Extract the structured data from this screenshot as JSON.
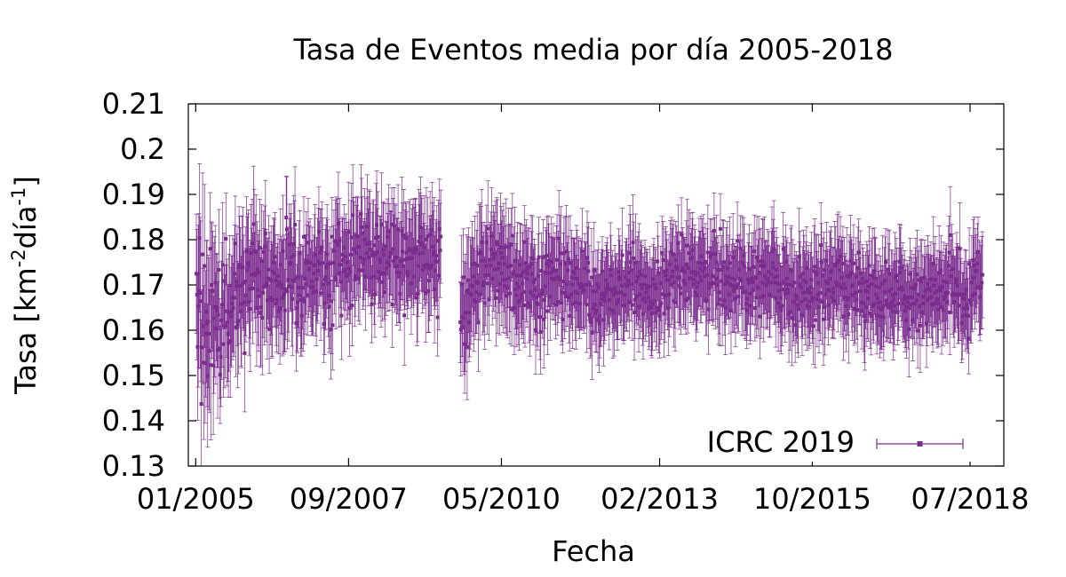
{
  "chart_data": {
    "type": "scatter",
    "title": "Tasa de Eventos media por día  2005-2018",
    "xlabel": "Fecha",
    "ylabel": {
      "base": "Tasa [km",
      "exp1": "-2",
      "mid": "día",
      "exp2": "-1",
      "end": "]"
    },
    "xlim": [
      "2004-11-15",
      "2019-02-01"
    ],
    "ylim": [
      0.13,
      0.21
    ],
    "yticks": [
      0.13,
      0.14,
      0.15,
      0.16,
      0.17,
      0.18,
      0.19,
      0.2,
      0.21
    ],
    "ytick_labels": [
      "0.13",
      "0.14",
      "0.15",
      "0.16",
      "0.17",
      "0.18",
      "0.19",
      "0.2",
      "0.21"
    ],
    "xticks": [
      "2005-01-01",
      "2007-09-01",
      "2010-05-01",
      "2013-02-01",
      "2015-10-01",
      "2018-07-01"
    ],
    "xtick_labels": [
      "01/2005",
      "09/2007",
      "05/2010",
      "02/2013",
      "10/2015",
      "07/2018"
    ],
    "legend": {
      "position": "bottom-right",
      "entries": [
        "ICRC 2019"
      ]
    },
    "grid": false,
    "colors": {
      "series": "#7b2d8e",
      "axis": "#000000"
    },
    "series": [
      {
        "name": "ICRC 2019",
        "with_error_bars": true,
        "x": [
          "2005-01-10",
          "2005-03-01",
          "2005-06-01",
          "2005-09-01",
          "2005-12-01",
          "2006-03-01",
          "2006-06-01",
          "2006-09-01",
          "2006-12-01",
          "2007-03-01",
          "2007-06-01",
          "2007-09-01",
          "2007-12-01",
          "2008-03-01",
          "2008-06-01",
          "2008-09-01",
          "2008-12-01",
          "2009-03-01",
          "2009-06-01",
          "2009-09-20",
          "2009-12-01",
          "2010-03-01",
          "2010-06-01",
          "2010-09-01",
          "2010-12-01",
          "2011-03-01",
          "2011-06-01",
          "2011-09-01",
          "2011-12-01",
          "2012-03-01",
          "2012-06-01",
          "2012-09-01",
          "2012-12-01",
          "2013-03-01",
          "2013-06-01",
          "2013-09-01",
          "2013-12-01",
          "2014-03-01",
          "2014-06-01",
          "2014-09-01",
          "2014-12-01",
          "2015-03-01",
          "2015-06-01",
          "2015-09-01",
          "2015-12-01",
          "2016-03-01",
          "2016-06-01",
          "2016-09-01",
          "2016-12-01",
          "2017-03-01",
          "2017-06-01",
          "2017-09-01",
          "2017-12-01",
          "2018-03-01",
          "2018-06-01",
          "2018-09-01"
        ],
        "y": [
          0.168,
          0.16,
          0.165,
          0.166,
          0.17,
          0.169,
          0.172,
          0.171,
          0.173,
          0.174,
          0.171,
          0.176,
          0.178,
          0.175,
          0.176,
          0.174,
          0.175,
          0.176,
          0.174,
          0.163,
          0.171,
          0.174,
          0.173,
          0.17,
          0.168,
          0.172,
          0.173,
          0.17,
          0.169,
          0.167,
          0.17,
          0.171,
          0.168,
          0.17,
          0.172,
          0.173,
          0.171,
          0.172,
          0.17,
          0.171,
          0.17,
          0.172,
          0.168,
          0.169,
          0.17,
          0.171,
          0.169,
          0.168,
          0.168,
          0.169,
          0.167,
          0.168,
          0.169,
          0.17,
          0.168,
          0.17
        ],
        "y_err": [
          0.015,
          0.016,
          0.013,
          0.012,
          0.012,
          0.011,
          0.011,
          0.011,
          0.01,
          0.01,
          0.01,
          0.01,
          0.01,
          0.01,
          0.01,
          0.01,
          0.01,
          0.01,
          0.01,
          0.011,
          0.01,
          0.01,
          0.01,
          0.01,
          0.009,
          0.009,
          0.009,
          0.009,
          0.009,
          0.009,
          0.009,
          0.009,
          0.009,
          0.009,
          0.009,
          0.009,
          0.009,
          0.009,
          0.009,
          0.009,
          0.009,
          0.009,
          0.009,
          0.009,
          0.009,
          0.009,
          0.009,
          0.009,
          0.009,
          0.009,
          0.009,
          0.009,
          0.009,
          0.009,
          0.009,
          0.009
        ],
        "spread": [
          0.015,
          0.016,
          0.013,
          0.012,
          0.011,
          0.011,
          0.01,
          0.01,
          0.01,
          0.009,
          0.009,
          0.009,
          0.009,
          0.009,
          0.009,
          0.009,
          0.008,
          0.008,
          0.008,
          0.01,
          0.009,
          0.009,
          0.008,
          0.008,
          0.008,
          0.008,
          0.008,
          0.008,
          0.008,
          0.007,
          0.007,
          0.007,
          0.007,
          0.007,
          0.007,
          0.007,
          0.007,
          0.007,
          0.007,
          0.007,
          0.007,
          0.007,
          0.007,
          0.007,
          0.007,
          0.007,
          0.007,
          0.007,
          0.007,
          0.007,
          0.007,
          0.007,
          0.007,
          0.007,
          0.007,
          0.007
        ],
        "data_gap": [
          "2009-04-10",
          "2009-08-10"
        ]
      }
    ]
  }
}
